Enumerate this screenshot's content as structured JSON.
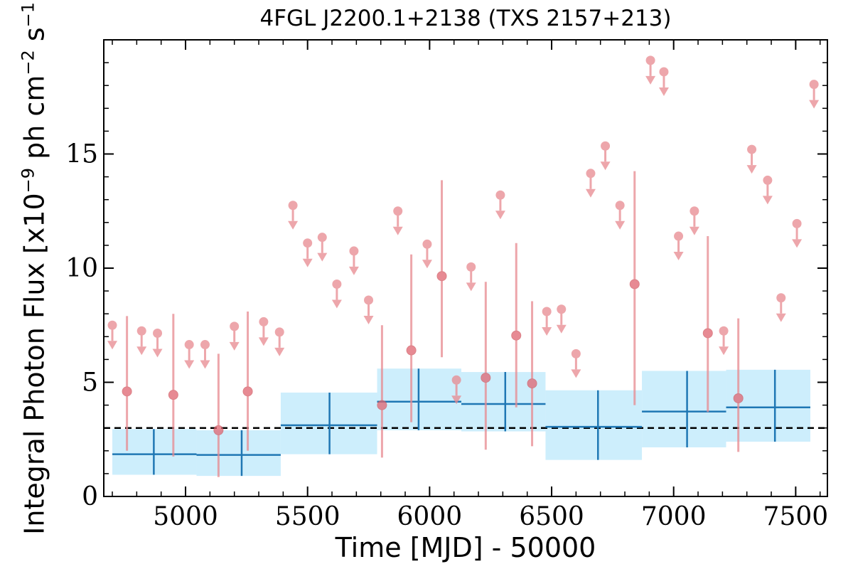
{
  "chart_data": {
    "type": "scatter",
    "title": "4FGL J2200.1+2138 (TXS 2157+213)",
    "xlabel": "Time [MJD] - 50000",
    "ylabel": {
      "text": "Integral Photon Flux [x10",
      "exp1": "−9",
      "mid": " ph cm",
      "exp2": "−2",
      "mid2": " s",
      "exp3": "−1",
      "end": "]"
    },
    "xlim": [
      4665,
      7630
    ],
    "ylim": [
      0,
      20
    ],
    "xticks": [
      5000,
      5500,
      6000,
      6500,
      7000,
      7500
    ],
    "yticks": [
      0,
      5,
      10,
      15
    ],
    "baseline": 3.0,
    "colors": {
      "points": "#e8898f",
      "bins": "#1f77b4",
      "band": "#cdeefc",
      "baseline": "#000000"
    },
    "series": [
      {
        "label": "upper_limits",
        "points": [
          [
            4700,
            7.5
          ],
          [
            4820,
            7.25
          ],
          [
            4885,
            7.15
          ],
          [
            5015,
            6.65
          ],
          [
            5080,
            6.65
          ],
          [
            5200,
            7.45
          ],
          [
            5320,
            7.65
          ],
          [
            5385,
            7.2
          ],
          [
            5440,
            12.75
          ],
          [
            5500,
            11.1
          ],
          [
            5560,
            11.35
          ],
          [
            5620,
            9.3
          ],
          [
            5690,
            10.75
          ],
          [
            5750,
            8.6
          ],
          [
            5870,
            12.5
          ],
          [
            5990,
            11.05
          ],
          [
            6110,
            5.1
          ],
          [
            6170,
            10.05
          ],
          [
            6290,
            13.2
          ],
          [
            6480,
            8.1
          ],
          [
            6540,
            8.2
          ],
          [
            6600,
            6.25
          ],
          [
            6660,
            14.15
          ],
          [
            6720,
            15.35
          ],
          [
            6780,
            12.75
          ],
          [
            6905,
            19.1
          ],
          [
            6960,
            18.6
          ],
          [
            7020,
            11.4
          ],
          [
            7085,
            12.5
          ],
          [
            7205,
            7.25
          ],
          [
            7320,
            15.2
          ],
          [
            7385,
            13.85
          ],
          [
            7440,
            8.7
          ],
          [
            7505,
            11.95
          ],
          [
            7575,
            18.05
          ]
        ]
      },
      {
        "label": "detections",
        "points": [
          [
            4760,
            4.6,
            2.0,
            7.9
          ],
          [
            4950,
            4.45,
            1.75,
            8.0
          ],
          [
            5135,
            2.9,
            0.85,
            6.25
          ],
          [
            5255,
            4.6,
            2.0,
            8.1
          ],
          [
            5805,
            4.0,
            1.7,
            7.5
          ],
          [
            5925,
            6.4,
            3.25,
            10.6
          ],
          [
            6050,
            9.65,
            6.1,
            13.85
          ],
          [
            6230,
            5.2,
            2.05,
            9.4
          ],
          [
            6355,
            7.05,
            3.9,
            11.1
          ],
          [
            6420,
            4.95,
            2.2,
            8.55
          ],
          [
            6840,
            9.3,
            4.0,
            14.25
          ],
          [
            7140,
            7.15,
            3.7,
            11.4
          ],
          [
            7265,
            4.3,
            1.95,
            7.8
          ]
        ]
      }
    ],
    "bins": [
      {
        "x0": 4700,
        "x1": 5045,
        "xc": 4870,
        "y": 1.85,
        "band_lo": 0.95,
        "band_hi": 2.95,
        "err_lo": 0.95,
        "err_hi": 2.95
      },
      {
        "x0": 5045,
        "x1": 5390,
        "xc": 5230,
        "y": 1.82,
        "band_lo": 0.9,
        "band_hi": 2.9,
        "err_lo": 0.9,
        "err_hi": 2.9
      },
      {
        "x0": 5390,
        "x1": 5785,
        "xc": 5590,
        "y": 3.12,
        "band_lo": 1.85,
        "band_hi": 4.55,
        "err_lo": 1.85,
        "err_hi": 4.55
      },
      {
        "x0": 5785,
        "x1": 6130,
        "xc": 5955,
        "y": 4.15,
        "band_lo": 2.9,
        "band_hi": 5.6,
        "err_lo": 2.9,
        "err_hi": 5.6
      },
      {
        "x0": 6130,
        "x1": 6475,
        "xc": 6310,
        "y": 4.05,
        "band_lo": 2.85,
        "band_hi": 5.45,
        "err_lo": 2.85,
        "err_hi": 5.45
      },
      {
        "x0": 6475,
        "x1": 6870,
        "xc": 6690,
        "y": 3.05,
        "band_lo": 1.6,
        "band_hi": 4.65,
        "err_lo": 1.6,
        "err_hi": 4.65
      },
      {
        "x0": 6870,
        "x1": 7215,
        "xc": 7055,
        "y": 3.72,
        "band_lo": 2.15,
        "band_hi": 5.5,
        "err_lo": 2.15,
        "err_hi": 5.5
      },
      {
        "x0": 7215,
        "x1": 7560,
        "xc": 7415,
        "y": 3.9,
        "band_lo": 2.4,
        "band_hi": 5.55,
        "err_lo": 2.4,
        "err_hi": 5.55
      }
    ]
  }
}
